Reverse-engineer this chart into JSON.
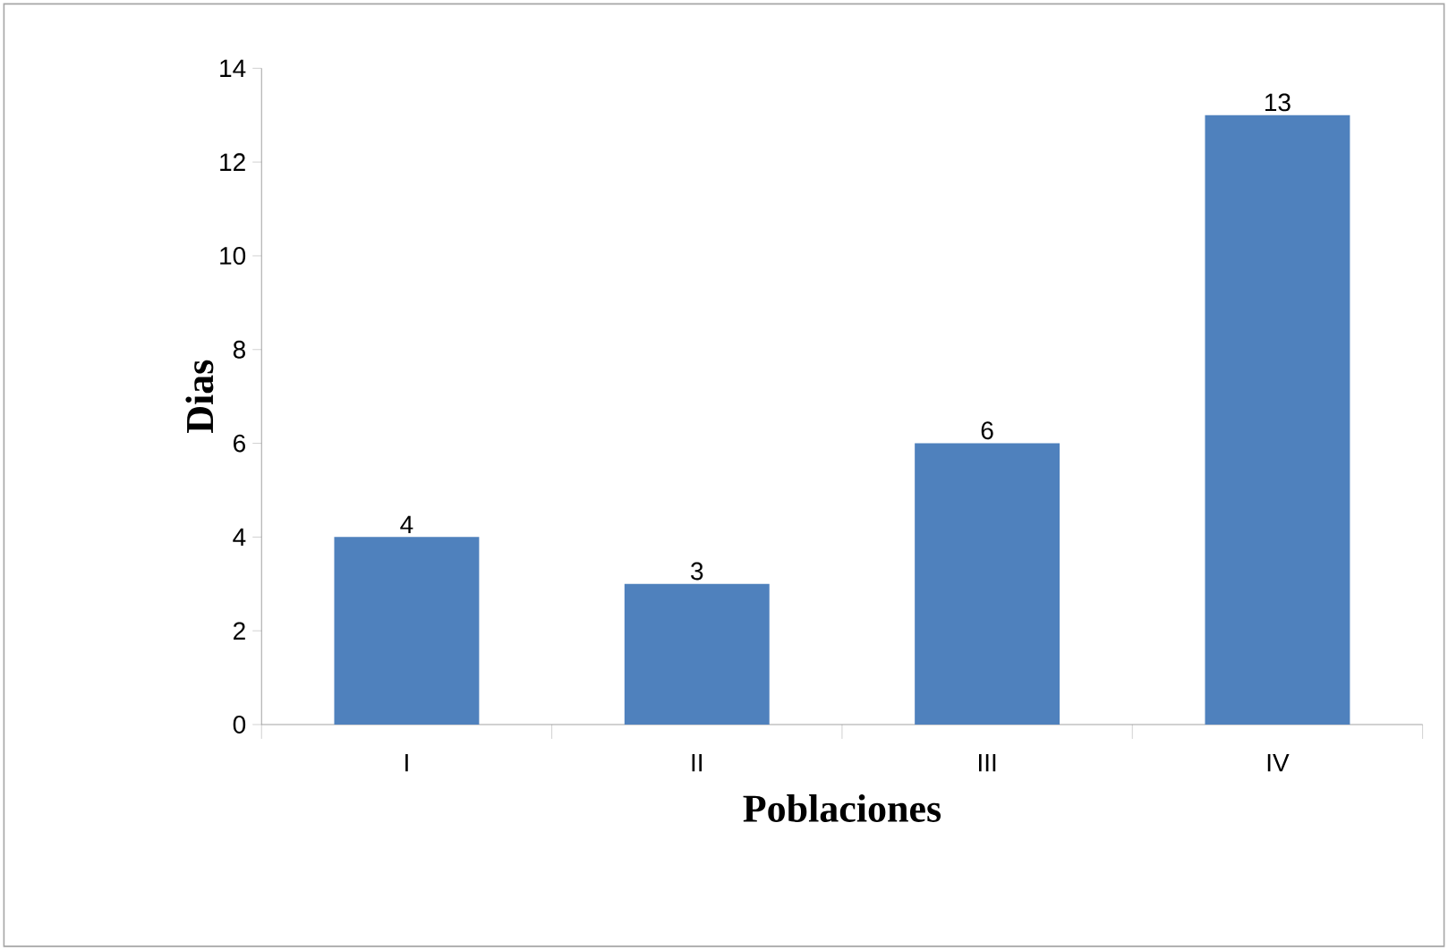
{
  "chart_data": {
    "type": "bar",
    "xlabel": "Poblaciones",
    "ylabel": "Dias",
    "categories": [
      "I",
      "II",
      "III",
      "IV"
    ],
    "values": [
      4,
      3,
      6,
      13
    ],
    "color": "#4f81bd",
    "ylim": [
      0,
      14
    ],
    "yticks": [
      0,
      2,
      4,
      6,
      8,
      10,
      12,
      14
    ],
    "data_labels": true,
    "grid": false
  }
}
